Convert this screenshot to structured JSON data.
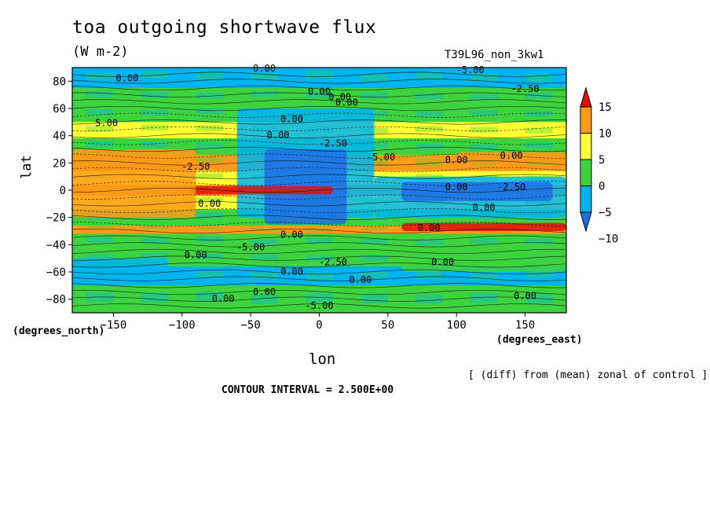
{
  "chart_data": {
    "type": "heatmap",
    "title": "toa outgoing shortwave flux",
    "units": "(W m-2)",
    "run_label": "T39L96_non_3kw1",
    "xlabel": "lon",
    "xlabel_units": "(degrees_east)",
    "ylabel": "lat",
    "ylabel_units": "(degrees_north)",
    "xlim": [
      -180,
      180
    ],
    "ylim": [
      -90,
      90
    ],
    "x_ticks": [
      -150,
      -100,
      -50,
      0,
      50,
      100,
      150
    ],
    "y_ticks": [
      80,
      60,
      40,
      20,
      0,
      -20,
      -40,
      -60,
      -80
    ],
    "colorbar": {
      "levels": [
        -10,
        -5,
        0,
        5,
        10,
        15
      ],
      "colors": [
        "#1f6fe6",
        "#00b4f0",
        "#3fd23f",
        "#ffff33",
        "#ff9a1a",
        "#e01010"
      ]
    },
    "contour_label": "0.00",
    "contour_labels_neg": [
      "-5.00",
      "-2.50"
    ],
    "contour_label_pos": "5.00",
    "note": "[ (diff) from (mean) zonal of control ]",
    "contour_interval": "CONTOUR INTERVAL = 2.500E+00",
    "bands": [
      {
        "lat": [
          75,
          90
        ],
        "level": -5
      },
      {
        "lat": [
          62,
          75
        ],
        "level": 0
      },
      {
        "lat": [
          50,
          62
        ],
        "level": 0
      },
      {
        "lat": [
          38,
          50
        ],
        "level": 5
      },
      {
        "lat": [
          26,
          38
        ],
        "level": 0
      },
      {
        "lat": [
          14,
          26
        ],
        "level": 10
      },
      {
        "lat": [
          4,
          14
        ],
        "level": 5
      },
      {
        "lat": [
          -4,
          4
        ],
        "level": 10
      },
      {
        "lat": [
          -14,
          -4
        ],
        "level": 5
      },
      {
        "lat": [
          -26,
          -14
        ],
        "level": 0
      },
      {
        "lat": [
          -32,
          -26
        ],
        "level": 10
      },
      {
        "lat": [
          -44,
          -32
        ],
        "level": 0
      },
      {
        "lat": [
          -56,
          -44
        ],
        "level": 0
      },
      {
        "lat": [
          -70,
          -56
        ],
        "level": -5
      },
      {
        "lat": [
          -90,
          -70
        ],
        "level": 0
      }
    ],
    "regions": [
      {
        "lon": [
          -60,
          40
        ],
        "lat": [
          -20,
          60
        ],
        "level": -5
      },
      {
        "lon": [
          -40,
          20
        ],
        "lat": [
          -25,
          30
        ],
        "level": -10
      },
      {
        "lon": [
          40,
          180
        ],
        "lat": [
          -20,
          10
        ],
        "level": -5
      },
      {
        "lon": [
          60,
          170
        ],
        "lat": [
          -8,
          6
        ],
        "level": -10
      },
      {
        "lon": [
          -95,
          10
        ],
        "lat": [
          -3,
          3
        ],
        "level": 15
      },
      {
        "lon": [
          -180,
          -90
        ],
        "lat": [
          -20,
          30
        ],
        "level": 10
      },
      {
        "lon": [
          60,
          180
        ],
        "lat": [
          -30,
          -24
        ],
        "level": 15
      },
      {
        "lon": [
          100,
          180
        ],
        "lat": [
          20,
          28
        ],
        "level": 10
      },
      {
        "lon": [
          -180,
          -110
        ],
        "lat": [
          -68,
          -50
        ],
        "level": -5
      },
      {
        "lon": [
          60,
          180
        ],
        "lat": [
          -60,
          -44
        ],
        "level": 0
      }
    ]
  }
}
